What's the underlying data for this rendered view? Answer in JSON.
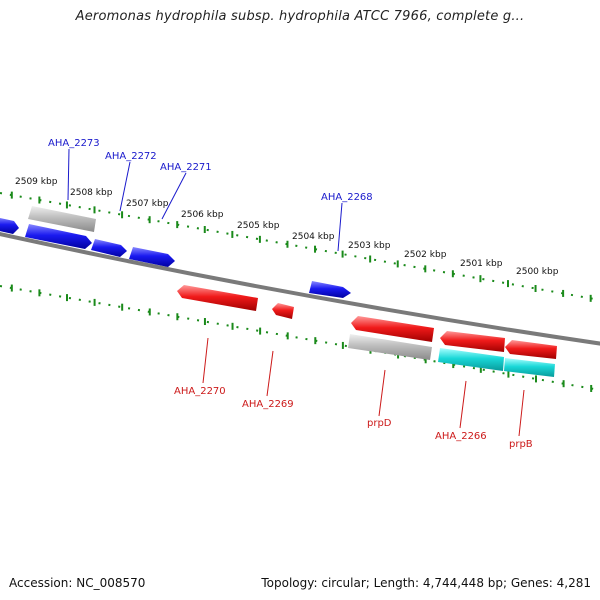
{
  "title": "Aeromonas hydrophila subsp. hydrophila ATCC 7966, complete g...",
  "accession": "Accession: NC_008570",
  "summary": "Topology: circular; Length: 4,744,448 bp; Genes: 4,281",
  "colors": {
    "forward": "#1515e8",
    "reverse": "#e81515",
    "gray": "#b8b8b8",
    "cyan": "#18d8d8",
    "backbone": "#808080",
    "tick": "#1a8a1a",
    "fwd_label": "#1a1acc",
    "rev_label": "#cc1a1a"
  },
  "ruler_labels": [
    "2509 kbp",
    "2508 kbp",
    "2507 kbp",
    "2506 kbp",
    "2505 kbp",
    "2504 kbp",
    "2503 kbp",
    "2502 kbp",
    "2501 kbp",
    "2500 kbp"
  ],
  "forward_labels": [
    "AHA_2273",
    "AHA_2272",
    "AHA_2271",
    "AHA_2268"
  ],
  "reverse_labels": [
    "AHA_2270",
    "AHA_2269",
    "prpD",
    "AHA_2266",
    "prpB"
  ]
}
